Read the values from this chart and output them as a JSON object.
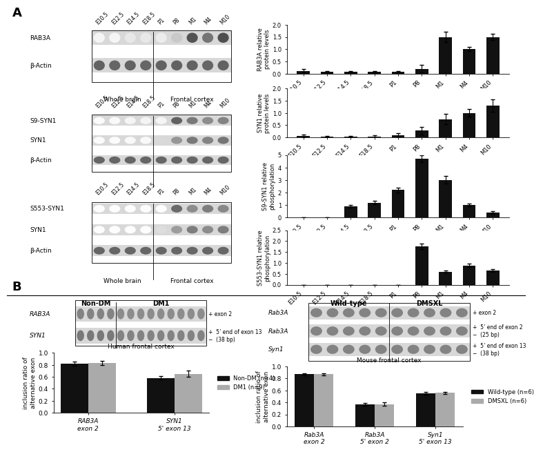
{
  "rab3a_bar_values": [
    0.12,
    0.08,
    0.07,
    0.08,
    0.07,
    0.2,
    1.5,
    1.0,
    1.5
  ],
  "rab3a_bar_errors": [
    0.08,
    0.04,
    0.03,
    0.04,
    0.03,
    0.15,
    0.2,
    0.08,
    0.12
  ],
  "rab3a_ylabel": "RAB3A relative\nprotein levels",
  "rab3a_ylim": [
    0,
    2.0
  ],
  "rab3a_yticks": [
    0,
    0.5,
    1.0,
    1.5,
    2.0
  ],
  "syn1_bar_values": [
    0.07,
    0.04,
    0.04,
    0.04,
    0.1,
    0.28,
    0.75,
    1.0,
    1.3
  ],
  "syn1_bar_errors": [
    0.05,
    0.02,
    0.02,
    0.05,
    0.07,
    0.15,
    0.2,
    0.15,
    0.25
  ],
  "syn1_ylabel": "SYN1 relative\nprotein levels",
  "syn1_ylim": [
    0,
    2.0
  ],
  "syn1_yticks": [
    0,
    0.5,
    1.0,
    1.5,
    2.0
  ],
  "s9syn1_bar_values": [
    0.0,
    0.0,
    0.9,
    1.2,
    2.2,
    4.7,
    3.0,
    1.0,
    0.4
  ],
  "s9syn1_bar_errors": [
    0.0,
    0.0,
    0.1,
    0.15,
    0.2,
    0.3,
    0.3,
    0.1,
    0.1
  ],
  "s9syn1_ylabel": "S9-SYN1 relative\nphosphorylation",
  "s9syn1_ylim": [
    0,
    5.0
  ],
  "s9syn1_yticks": [
    0,
    1,
    2,
    3,
    4,
    5
  ],
  "s553syn1_bar_values": [
    0.0,
    0.0,
    0.0,
    0.0,
    0.0,
    1.75,
    0.6,
    0.88,
    0.65
  ],
  "s553syn1_bar_errors": [
    0.0,
    0.0,
    0.0,
    0.0,
    0.0,
    0.12,
    0.05,
    0.08,
    0.07
  ],
  "s553syn1_ylabel": "S553-SYN1 relative\nphosphorylation",
  "s553syn1_ylim": [
    0,
    2.5
  ],
  "s553syn1_yticks": [
    0,
    0.5,
    1.0,
    1.5,
    2.0,
    2.5
  ],
  "bar_xticklabels": [
    "E10.5",
    "E12.5",
    "E14.5",
    "E18.5",
    "P1",
    "P8",
    "M1",
    "M4",
    "M10"
  ],
  "human_bar_nonDM": [
    0.82,
    0.58
  ],
  "human_bar_DM1": [
    0.83,
    0.65
  ],
  "human_bar_err_nonDM": [
    0.03,
    0.03
  ],
  "human_bar_err_DM1": [
    0.03,
    0.05
  ],
  "human_bar_ylabel": "inclusion ratio of\nalternative exon",
  "human_bar_ylim": [
    0,
    1.0
  ],
  "human_bar_yticks": [
    0.0,
    0.2,
    0.4,
    0.6,
    0.8,
    1.0
  ],
  "human_bar_cats": [
    "RAB3A\nexon 2",
    "SYN1\n5' exon 13"
  ],
  "mouse_bar_wt": [
    0.87,
    0.37,
    0.55
  ],
  "mouse_bar_dmsxl": [
    0.87,
    0.37,
    0.56
  ],
  "mouse_bar_err_wt": [
    0.02,
    0.02,
    0.02
  ],
  "mouse_bar_err_dmsxl": [
    0.02,
    0.03,
    0.02
  ],
  "mouse_bar_ylabel": "inclusion ratio of\nalternative exon",
  "mouse_bar_ylim": [
    0,
    1.0
  ],
  "mouse_bar_yticks": [
    0.0,
    0.2,
    0.4,
    0.6,
    0.8,
    1.0
  ],
  "mouse_bar_cats": [
    "Rab3A\nexon 2",
    "Rab3A\n5' exon 2",
    "Syn1\n5' exon 13"
  ],
  "bar_color_black": "#111111",
  "bar_color_gray": "#aaaaaa",
  "bg_color": "#ffffff",
  "wb_labels_top": [
    "E10.5",
    "E12.5",
    "E14.5",
    "E18.5",
    "P1",
    "P8",
    "M1",
    "M4",
    "M10"
  ],
  "legend_nonDM": "Non-DM (n=4)",
  "legend_DM1": "DM1 (n=9)",
  "legend_wt": "Wild-type (n=6)",
  "legend_dmsxl": "DMSXL (n=6)"
}
